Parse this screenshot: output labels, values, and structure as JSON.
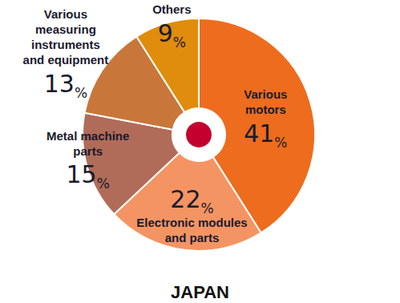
{
  "chart_data": {
    "type": "pie",
    "title": "JAPAN",
    "categories": [
      "Various motors",
      "Electronic modules and parts",
      "Metal machine parts",
      "Various measuring instruments and equipment",
      "Others"
    ],
    "values": [
      41,
      22,
      15,
      13,
      9
    ],
    "value_labels": [
      "41%",
      "22%",
      "15%",
      "13%",
      "9%"
    ],
    "colors": [
      "#ee6c1d",
      "#f49462",
      "#b06c58",
      "#c9763b",
      "#e08c0c"
    ],
    "data_labels": true
  }
}
